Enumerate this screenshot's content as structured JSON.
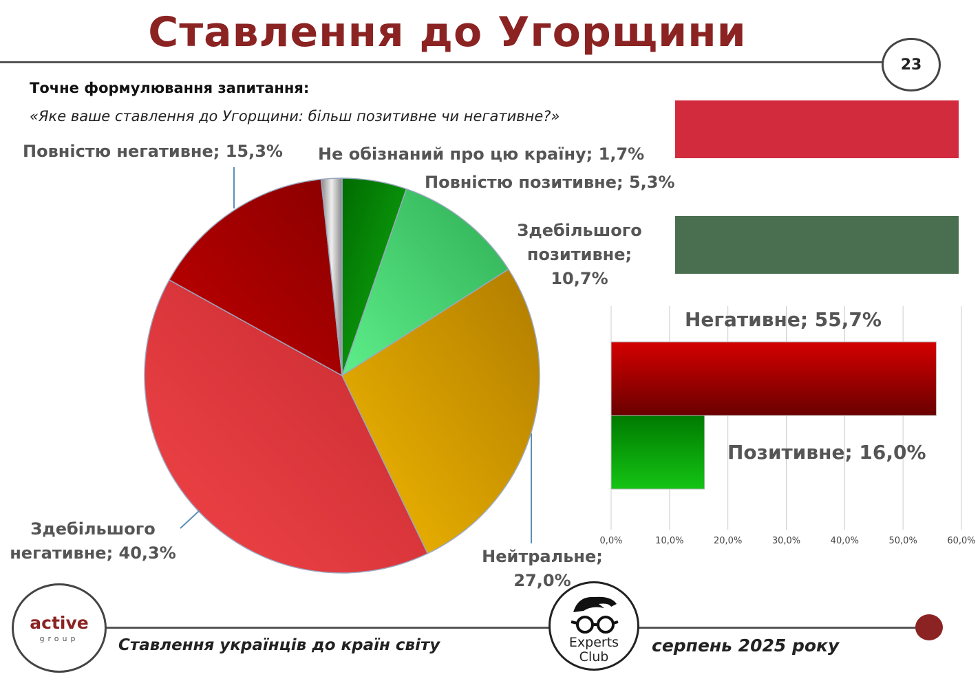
{
  "header": {
    "title": "Ставлення до Угорщини",
    "page_number": "23"
  },
  "question": {
    "label": "Точне формулювання запитання:",
    "text": "«Яке ваше ставлення до Угорщини: більш позитивне чи негативне?»"
  },
  "colors": {
    "title": "#8b2323",
    "legend_negative": "#d22b3d",
    "legend_positive": "#4a6f50"
  },
  "chart_data": [
    {
      "type": "pie",
      "title": "",
      "slices": [
        {
          "label": "Повністю позитивне; 5,3%",
          "value": 5.3,
          "color": "#0b8a0b"
        },
        {
          "label": "Здебільшого позитивне; 10,7%",
          "value": 10.7,
          "color": "#3ccc6a"
        },
        {
          "label": "Нейтральне; 27,0%",
          "value": 27.0,
          "color": "#d9a000"
        },
        {
          "label": "Здебільшого негативне; 40,3%",
          "value": 40.3,
          "color": "#e53a40"
        },
        {
          "label": "Повністю негативне; 15,3%",
          "value": 15.3,
          "color": "#a80000"
        },
        {
          "label": "Не обізнаний про цю країну; 1,7%",
          "value": 1.7,
          "color": "#aaaaaa"
        }
      ],
      "label_lines": {
        "fully_positive": "Повністю позитивне; 5,3%",
        "mostly_positive": [
          "Здебільшого",
          "позитивне;",
          "10,7%"
        ],
        "neutral": [
          "Нейтральне;",
          "27,0%"
        ],
        "mostly_negative": [
          "Здебільшого",
          "негативне; 40,3%"
        ],
        "fully_negative": "Повністю негативне; 15,3%",
        "unaware": "Не обізнаний про цю країну; 1,7%"
      }
    },
    {
      "type": "bar",
      "orientation": "horizontal",
      "title": "",
      "categories": [
        "Негативне",
        "Позитивне"
      ],
      "values": [
        55.7,
        16.0
      ],
      "data_labels": [
        "Негативне; 55,7%",
        "Позитивне; 16,0%"
      ],
      "colors": [
        "#b30000",
        "#10a510"
      ],
      "xlim": [
        0,
        60
      ],
      "ticks": [
        "0,0%",
        "10,0%",
        "20,0%",
        "30,0%",
        "40,0%",
        "50,0%",
        "60,0%"
      ],
      "grid": true
    }
  ],
  "footer": {
    "logo_left_main": "active",
    "logo_left_sub": "group",
    "logo_right_line1": "Experts",
    "logo_right_line2": "Club",
    "survey_name": "Ставлення українців до країн світу",
    "date": "серпень 2025 року"
  }
}
